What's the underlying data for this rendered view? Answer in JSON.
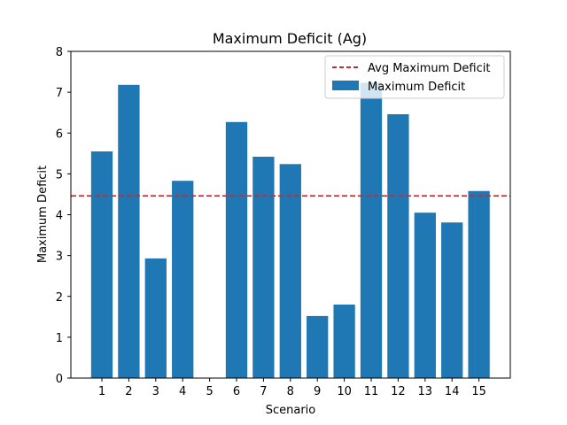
{
  "chart_data": {
    "type": "bar",
    "title": "Maximum Deficit (Ag)",
    "xlabel": "Scenario",
    "ylabel": "Maximum Deficit",
    "categories": [
      "1",
      "2",
      "3",
      "4",
      "5",
      "6",
      "7",
      "8",
      "9",
      "10",
      "11",
      "12",
      "13",
      "14",
      "15"
    ],
    "series": [
      {
        "name": "Maximum Deficit",
        "color": "#1f77b4",
        "values": [
          5.55,
          7.18,
          2.93,
          4.83,
          0.0,
          6.27,
          5.42,
          5.24,
          1.52,
          1.8,
          7.23,
          6.46,
          4.05,
          3.81,
          4.58
        ]
      }
    ],
    "reference_line": {
      "name": "Avg Maximum Deficit",
      "value": 4.46,
      "color": "#d62728",
      "style": "dashed"
    },
    "ylim": [
      0,
      8
    ],
    "yticks": [
      0,
      1,
      2,
      3,
      4,
      5,
      6,
      7,
      8
    ],
    "legend_position": "top-right",
    "grid": false
  }
}
